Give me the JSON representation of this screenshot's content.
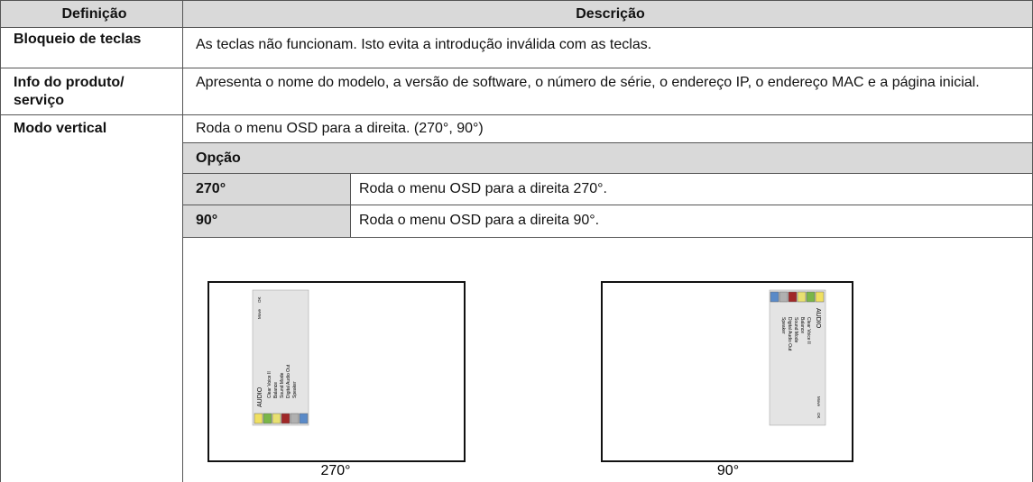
{
  "table": {
    "header": [
      "Definição",
      "Descrição"
    ],
    "rows": [
      {
        "term": "Bloqueio de teclas",
        "description": "As teclas não funcionam. Isto evita a introdução inválida com as teclas."
      },
      {
        "term": "Info do produto/ serviço",
        "description": "Apresenta o nome do modelo, a versão de software, o número de série, o endereço IP, o endereço MAC e a página inicial."
      },
      {
        "term": "Modo vertical",
        "description": "Roda o menu OSD para a direita. (270°, 90°)",
        "options": {
          "header": "Opção",
          "rows": [
            [
              "270°",
              "Roda o menu OSD para a direita 270°."
            ],
            [
              "90°",
              "Roda o menu OSD para a direita 90°."
            ]
          ]
        },
        "figures": [
          {
            "caption": "270°"
          },
          {
            "caption": "90°"
          }
        ]
      }
    ]
  },
  "osd_menu": {
    "title": "AUDIO",
    "items": [
      "Clear Voice II",
      "Balance",
      "Sound Mode",
      "Digital Audio Out",
      "Speaker"
    ],
    "hints": [
      "Move",
      "OK"
    ]
  }
}
